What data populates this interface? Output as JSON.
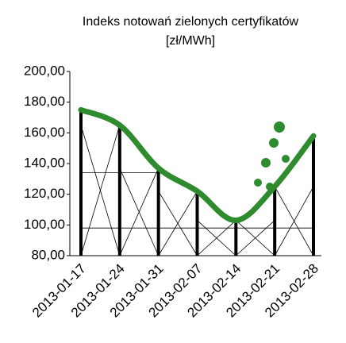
{
  "chart_data": {
    "type": "line",
    "title": "Indeks notowań zielonych certyfikatów",
    "subtitle": "[zł/MWh]",
    "categories": [
      "2013-01-17",
      "2013-01-24",
      "2013-01-31",
      "2013-02-07",
      "2013-02-14",
      "2013-02-21",
      "2013-02-28"
    ],
    "values": [
      175,
      165,
      137,
      122,
      103,
      125,
      158
    ],
    "color": "#2e8b2e",
    "ylim": [
      80,
      200
    ],
    "yticks": [
      {
        "value": 80,
        "label": "80,00"
      },
      {
        "value": 100,
        "label": "100,00"
      },
      {
        "value": 120,
        "label": "120,00"
      },
      {
        "value": 140,
        "label": "140,00"
      },
      {
        "value": 160,
        "label": "160,00"
      },
      {
        "value": 180,
        "label": "180,00"
      },
      {
        "value": 200,
        "label": "200,00"
      }
    ],
    "grid": false
  }
}
